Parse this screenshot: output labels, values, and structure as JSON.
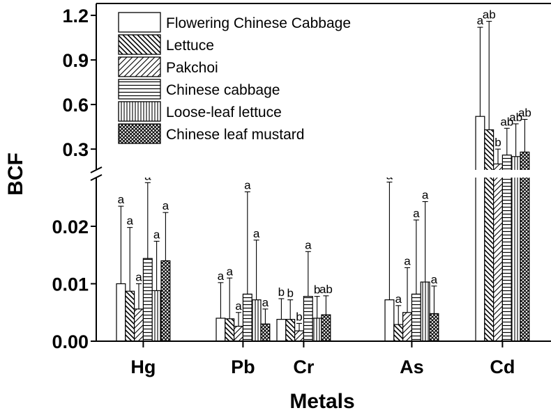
{
  "chart_data": {
    "type": "bar",
    "xlabel": "Metals",
    "ylabel": "BCF",
    "categories": [
      "Hg",
      "Pb",
      "Cr",
      "As",
      "Cd"
    ],
    "axis_break": true,
    "lower_ylim": [
      0,
      0.028
    ],
    "lower_ticks": [
      "0.00",
      "0.01",
      "0.02"
    ],
    "upper_ylim": [
      0.16,
      1.28
    ],
    "upper_ticks": [
      "0.3",
      "0.6",
      "0.9",
      "1.2"
    ],
    "legend_position": "top-left",
    "series": [
      {
        "name": "Flowering Chinese Cabbage",
        "pattern": "open",
        "values": [
          0.01,
          0.004,
          0.0038,
          0.0072,
          0.52
        ],
        "errors": [
          0.0135,
          0.0062,
          0.0036,
          0.0205,
          0.6
        ],
        "letters": [
          "a",
          "a",
          "b",
          "a",
          "a"
        ]
      },
      {
        "name": "Lettuce",
        "pattern": "back-diagonal",
        "values": [
          0.0087,
          0.0039,
          0.0038,
          0.0029,
          0.43
        ],
        "errors": [
          0.0111,
          0.0071,
          0.0034,
          0.0033,
          0.73
        ],
        "letters": [
          "a",
          "a",
          "b",
          "a",
          "ab"
        ]
      },
      {
        "name": "Pakchoi",
        "pattern": "forward-diagonal",
        "values": [
          0.0056,
          0.0026,
          0.0018,
          0.005,
          0.2
        ],
        "errors": [
          0.0044,
          0.0024,
          0.0013,
          0.0078,
          0.1
        ],
        "letters": [
          "a",
          "a",
          "b",
          "a",
          "b"
        ]
      },
      {
        "name": "Chinese cabbage",
        "pattern": "horizontal",
        "values": [
          0.0144,
          0.0082,
          0.0078,
          0.0082,
          0.26
        ],
        "errors": [
          0.0132,
          0.0178,
          0.0078,
          0.0129,
          0.18
        ],
        "letters": [
          "a",
          "a",
          "a",
          "a",
          "ab"
        ]
      },
      {
        "name": "Loose-leaf  lettuce",
        "pattern": "vertical",
        "values": [
          0.0088,
          0.0072,
          0.004,
          0.0103,
          0.25
        ],
        "errors": [
          0.0086,
          0.0104,
          0.0038,
          0.014,
          0.22
        ],
        "letters": [
          "a",
          "a",
          "b",
          "a",
          "ab"
        ]
      },
      {
        "name": "Chinese leaf mustard",
        "pattern": "crosshatch",
        "values": [
          0.014,
          0.003,
          0.0046,
          0.0048,
          0.28
        ],
        "errors": [
          0.0084,
          0.0026,
          0.0033,
          0.0048,
          0.22
        ],
        "letters": [
          "a",
          "a",
          "ab",
          "a",
          "ab"
        ]
      }
    ]
  }
}
